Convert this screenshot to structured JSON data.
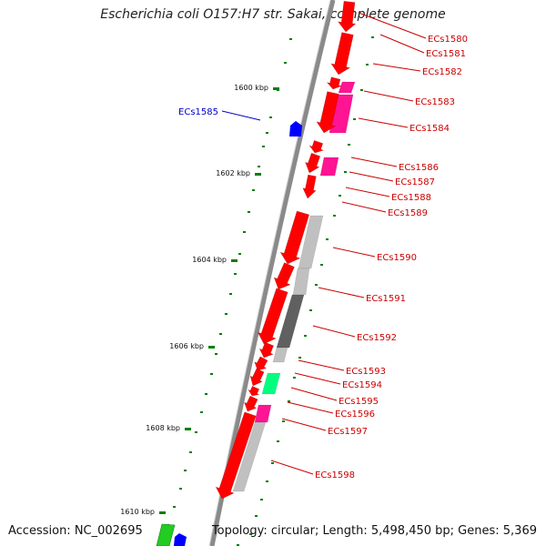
{
  "title": "Escherichia coli O157:H7 str. Sakai, complete genome",
  "footer": {
    "accession": "Accession: NC_002695",
    "summary": "Topology: circular; Length: 5,498,450 bp; Genes: 5,369"
  },
  "colors": {
    "backbone": "#8a8a8a",
    "forward_gene": "#ff0000",
    "reverse_gene": "#0000ff",
    "hit_pink": "#ff1493",
    "hit_light": "#c0c0c0",
    "hit_dark": "#606060",
    "hit_green": "#00ff7f",
    "tick": "#008000",
    "label_forward": "#cc0000",
    "label_reverse": "#0000cc"
  },
  "kbp_ticks": [
    "1600 kbp",
    "1602 kbp",
    "1604 kbp",
    "1606 kbp",
    "1608 kbp",
    "1610 kbp"
  ],
  "genes": [
    {
      "name": "ECs1580",
      "strand": "forward"
    },
    {
      "name": "ECs1581",
      "strand": "forward"
    },
    {
      "name": "ECs1582",
      "strand": "forward"
    },
    {
      "name": "ECs1583",
      "strand": "forward"
    },
    {
      "name": "ECs1584",
      "strand": "forward"
    },
    {
      "name": "ECs1585",
      "strand": "reverse"
    },
    {
      "name": "ECs1586",
      "strand": "forward"
    },
    {
      "name": "ECs1587",
      "strand": "forward"
    },
    {
      "name": "ECs1588",
      "strand": "forward"
    },
    {
      "name": "ECs1589",
      "strand": "forward"
    },
    {
      "name": "ECs1590",
      "strand": "forward"
    },
    {
      "name": "ECs1591",
      "strand": "forward"
    },
    {
      "name": "ECs1592",
      "strand": "forward"
    },
    {
      "name": "ECs1593",
      "strand": "forward"
    },
    {
      "name": "ECs1594",
      "strand": "forward"
    },
    {
      "name": "ECs1595",
      "strand": "forward"
    },
    {
      "name": "ECs1596",
      "strand": "forward"
    },
    {
      "name": "ECs1597",
      "strand": "forward"
    },
    {
      "name": "ECs1598",
      "strand": "forward"
    }
  ]
}
